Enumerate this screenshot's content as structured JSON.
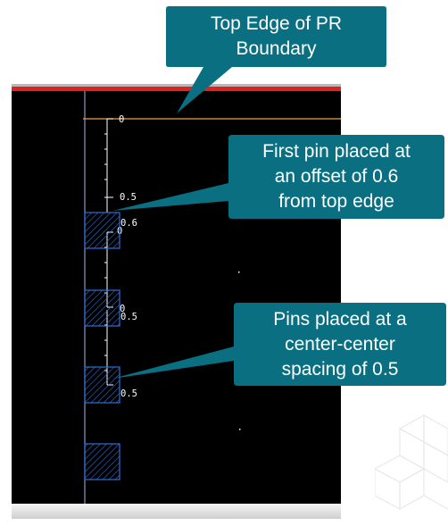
{
  "callouts": {
    "top_edge": {
      "line1": "Top Edge of PR",
      "line2": "Boundary"
    },
    "first_pin": {
      "line1": "First pin placed at",
      "line2": "an offset of 0.6",
      "line3": "from top edge"
    },
    "pin_spacing": {
      "line1": "Pins placed at a",
      "line2": "center-center",
      "line3": "spacing of 0.5"
    }
  },
  "scale_labels": {
    "ruler1_start": "0",
    "ruler1_mid": "0.5",
    "ruler1_end": "0.6",
    "ruler2_start": "0",
    "ruler2_end": "0.5",
    "ruler3_start": "0",
    "ruler3_end": "0.5"
  },
  "colors": {
    "callout_fill": "#0a6f80",
    "boundary_line": "#f0a040",
    "pin_stroke": "#2f6fd8",
    "ruler": "#ffffff",
    "axis_line": "#8a9ac0"
  }
}
